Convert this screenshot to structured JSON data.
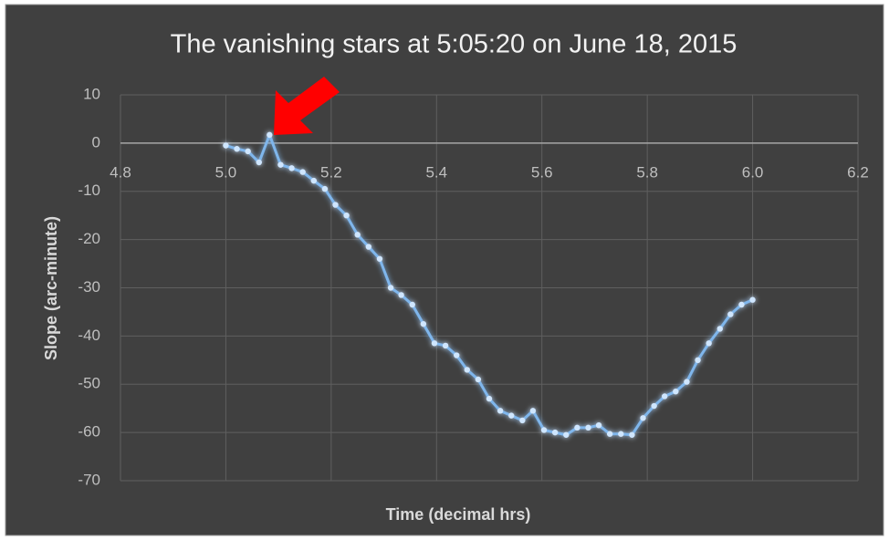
{
  "chart_data": {
    "type": "line",
    "title": "The vanishing stars at 5:05:20 on June 18, 2015",
    "xlabel": "Time (decimal hrs)",
    "ylabel": "Slope (arc-minute)",
    "x": [
      5.0,
      5.021,
      5.042,
      5.063,
      5.083,
      5.104,
      5.125,
      5.146,
      5.167,
      5.188,
      5.208,
      5.229,
      5.25,
      5.271,
      5.292,
      5.313,
      5.333,
      5.354,
      5.375,
      5.396,
      5.417,
      5.438,
      5.458,
      5.479,
      5.5,
      5.521,
      5.542,
      5.563,
      5.583,
      5.604,
      5.625,
      5.646,
      5.667,
      5.688,
      5.708,
      5.729,
      5.75,
      5.771,
      5.792,
      5.813,
      5.833,
      5.854,
      5.875,
      5.896,
      5.917,
      5.938,
      5.958,
      5.979,
      6.0
    ],
    "values": [
      -0.5,
      -1.2,
      -1.7,
      -4,
      1.7,
      -4.5,
      -5.2,
      -6,
      -7.8,
      -9.5,
      -12.8,
      -15,
      -19,
      -21.5,
      -24,
      -30,
      -31.5,
      -33.5,
      -37.5,
      -41.5,
      -42,
      -44,
      -47,
      -49,
      -53,
      -55.5,
      -56.5,
      -57.5,
      -55.5,
      -59.5,
      -60,
      -60.5,
      -59,
      -59,
      -58.5,
      -60.3,
      -60.3,
      -60.5,
      -57,
      -54.5,
      -52.5,
      -51.5,
      -49.5,
      -45,
      -41.5,
      -38.5,
      -35.5,
      -33.5,
      -32.5
    ],
    "color": "#7fb6ec",
    "xlim": [
      4.8,
      6.2
    ],
    "xticks": [
      4.8,
      {
        "value": 5,
        "label": "5.0"
      },
      5.2,
      5.4,
      5.6,
      5.8,
      {
        "value": 6,
        "label": "6.0"
      },
      6.2
    ],
    "ylim": [
      -70,
      10
    ],
    "yticks": [
      10,
      0,
      -10,
      -20,
      -30,
      -40,
      -50,
      -60,
      -70
    ],
    "grid": true
  }
}
